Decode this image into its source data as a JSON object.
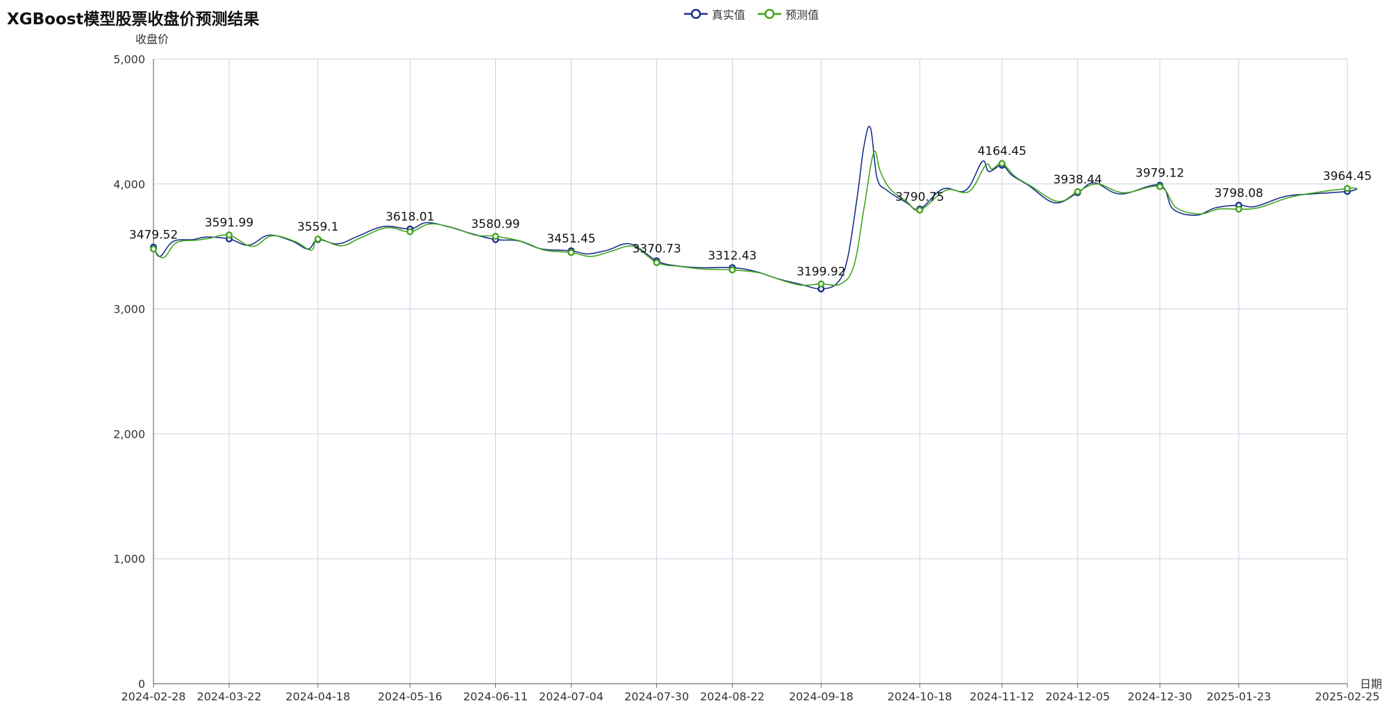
{
  "chart_data": {
    "type": "line",
    "title": "XGBoost模型股票收盘价预测结果",
    "xlabel": "日期",
    "ylabel": "收盘价",
    "ylim": [
      0,
      5000
    ],
    "y_ticks": [
      "0",
      "1,000",
      "2,000",
      "3,000",
      "4,000",
      "5,000"
    ],
    "y_tick_values": [
      0,
      1000,
      2000,
      3000,
      4000,
      5000
    ],
    "x_ticks": [
      "2024-02-28",
      "2024-03-22",
      "2024-04-18",
      "2024-05-16",
      "2024-06-11",
      "2024-07-04",
      "2024-07-30",
      "2024-08-22",
      "2024-09-18",
      "2024-10-18",
      "2024-11-12",
      "2024-12-05",
      "2024-12-30",
      "2025-01-23",
      "2025-02-25"
    ],
    "grid": true,
    "legend_position": "top-center",
    "series": [
      {
        "name": "真实值",
        "color": "#1a2e8c",
        "anchors": [
          [
            "2024-02-28",
            3495
          ],
          [
            "2024-03-01",
            3420
          ],
          [
            "2024-03-05",
            3540
          ],
          [
            "2024-03-11",
            3555
          ],
          [
            "2024-03-15",
            3575
          ],
          [
            "2024-03-22",
            3560
          ],
          [
            "2024-03-28",
            3510
          ],
          [
            "2024-04-03",
            3590
          ],
          [
            "2024-04-10",
            3545
          ],
          [
            "2024-04-15",
            3480
          ],
          [
            "2024-04-18",
            3555
          ],
          [
            "2024-04-24",
            3520
          ],
          [
            "2024-04-30",
            3580
          ],
          [
            "2024-05-08",
            3660
          ],
          [
            "2024-05-16",
            3640
          ],
          [
            "2024-05-21",
            3690
          ],
          [
            "2024-05-28",
            3655
          ],
          [
            "2024-06-04",
            3600
          ],
          [
            "2024-06-11",
            3555
          ],
          [
            "2024-06-18",
            3545
          ],
          [
            "2024-06-25",
            3480
          ],
          [
            "2024-07-04",
            3465
          ],
          [
            "2024-07-09",
            3440
          ],
          [
            "2024-07-15",
            3470
          ],
          [
            "2024-07-22",
            3520
          ],
          [
            "2024-07-30",
            3385
          ],
          [
            "2024-08-05",
            3345
          ],
          [
            "2024-08-12",
            3330
          ],
          [
            "2024-08-22",
            3330
          ],
          [
            "2024-08-29",
            3300
          ],
          [
            "2024-09-05",
            3240
          ],
          [
            "2024-09-12",
            3195
          ],
          [
            "2024-09-18",
            3160
          ],
          [
            "2024-09-23",
            3210
          ],
          [
            "2024-09-26",
            3400
          ],
          [
            "2024-09-29",
            3900
          ],
          [
            "2024-10-01",
            4300
          ],
          [
            "2024-10-03",
            4450
          ],
          [
            "2024-10-05",
            4050
          ],
          [
            "2024-10-08",
            3950
          ],
          [
            "2024-10-14",
            3850
          ],
          [
            "2024-10-18",
            3800
          ],
          [
            "2024-10-25",
            3960
          ],
          [
            "2024-11-01",
            3950
          ],
          [
            "2024-11-06",
            4180
          ],
          [
            "2024-11-08",
            4100
          ],
          [
            "2024-11-12",
            4150
          ],
          [
            "2024-11-15",
            4070
          ],
          [
            "2024-11-20",
            3990
          ],
          [
            "2024-11-28",
            3850
          ],
          [
            "2024-12-05",
            3930
          ],
          [
            "2024-12-10",
            4010
          ],
          [
            "2024-12-18",
            3920
          ],
          [
            "2024-12-30",
            3990
          ],
          [
            "2025-01-03",
            3800
          ],
          [
            "2025-01-10",
            3750
          ],
          [
            "2025-01-16",
            3810
          ],
          [
            "2025-01-23",
            3830
          ],
          [
            "2025-01-28",
            3820
          ],
          [
            "2025-02-06",
            3900
          ],
          [
            "2025-02-14",
            3920
          ],
          [
            "2025-02-25",
            3940
          ],
          [
            "2025-02-28",
            3960
          ]
        ]
      },
      {
        "name": "预测值",
        "color": "#3fa31c",
        "anchors": [
          [
            "2024-02-28",
            3480
          ],
          [
            "2024-03-02",
            3410
          ],
          [
            "2024-03-06",
            3530
          ],
          [
            "2024-03-12",
            3550
          ],
          [
            "2024-03-16",
            3565
          ],
          [
            "2024-03-22",
            3590
          ],
          [
            "2024-03-29",
            3500
          ],
          [
            "2024-04-04",
            3585
          ],
          [
            "2024-04-11",
            3540
          ],
          [
            "2024-04-16",
            3470
          ],
          [
            "2024-04-18",
            3560
          ],
          [
            "2024-04-25",
            3505
          ],
          [
            "2024-05-01",
            3570
          ],
          [
            "2024-05-09",
            3650
          ],
          [
            "2024-05-16",
            3618
          ],
          [
            "2024-05-22",
            3680
          ],
          [
            "2024-05-29",
            3650
          ],
          [
            "2024-06-05",
            3590
          ],
          [
            "2024-06-11",
            3581
          ],
          [
            "2024-06-19",
            3540
          ],
          [
            "2024-06-26",
            3470
          ],
          [
            "2024-07-04",
            3451
          ],
          [
            "2024-07-10",
            3420
          ],
          [
            "2024-07-16",
            3460
          ],
          [
            "2024-07-23",
            3500
          ],
          [
            "2024-07-30",
            3371
          ],
          [
            "2024-08-06",
            3340
          ],
          [
            "2024-08-13",
            3320
          ],
          [
            "2024-08-22",
            3312
          ],
          [
            "2024-08-30",
            3290
          ],
          [
            "2024-09-06",
            3230
          ],
          [
            "2024-09-12",
            3190
          ],
          [
            "2024-09-18",
            3200
          ],
          [
            "2024-09-24",
            3200
          ],
          [
            "2024-09-28",
            3350
          ],
          [
            "2024-10-01",
            3800
          ],
          [
            "2024-10-04",
            4250
          ],
          [
            "2024-10-06",
            4100
          ],
          [
            "2024-10-09",
            3960
          ],
          [
            "2024-10-14",
            3860
          ],
          [
            "2024-10-18",
            3791
          ],
          [
            "2024-10-26",
            3950
          ],
          [
            "2024-11-02",
            3940
          ],
          [
            "2024-11-07",
            4150
          ],
          [
            "2024-11-09",
            4120
          ],
          [
            "2024-11-12",
            4164
          ],
          [
            "2024-11-16",
            4060
          ],
          [
            "2024-11-21",
            3980
          ],
          [
            "2024-11-29",
            3860
          ],
          [
            "2024-12-05",
            3938
          ],
          [
            "2024-12-11",
            4000
          ],
          [
            "2024-12-19",
            3930
          ],
          [
            "2024-12-30",
            3979
          ],
          [
            "2025-01-04",
            3810
          ],
          [
            "2025-01-11",
            3760
          ],
          [
            "2025-01-17",
            3800
          ],
          [
            "2025-01-23",
            3798
          ],
          [
            "2025-01-29",
            3810
          ],
          [
            "2025-02-07",
            3890
          ],
          [
            "2025-02-15",
            3930
          ],
          [
            "2025-02-25",
            3964
          ],
          [
            "2025-02-28",
            3965
          ]
        ]
      }
    ],
    "point_labels": [
      {
        "date": "2024-02-28",
        "value": 3479.52,
        "label": "3479.52"
      },
      {
        "date": "2024-03-22",
        "value": 3591.99,
        "label": "3591.99"
      },
      {
        "date": "2024-04-18",
        "value": 3559.1,
        "label": "3559.1"
      },
      {
        "date": "2024-05-16",
        "value": 3618.01,
        "label": "3618.01"
      },
      {
        "date": "2024-06-11",
        "value": 3580.99,
        "label": "3580.99"
      },
      {
        "date": "2024-07-04",
        "value": 3451.45,
        "label": "3451.45"
      },
      {
        "date": "2024-07-30",
        "value": 3370.73,
        "label": "3370.73"
      },
      {
        "date": "2024-08-22",
        "value": 3312.43,
        "label": "3312.43"
      },
      {
        "date": "2024-09-18",
        "value": 3199.92,
        "label": "3199.92"
      },
      {
        "date": "2024-10-18",
        "value": 3790.75,
        "label": "3790.75"
      },
      {
        "date": "2024-11-12",
        "value": 4164.45,
        "label": "4164.45"
      },
      {
        "date": "2024-12-05",
        "value": 3938.44,
        "label": "3938.44"
      },
      {
        "date": "2024-12-30",
        "value": 3979.12,
        "label": "3979.12"
      },
      {
        "date": "2025-01-23",
        "value": 3798.08,
        "label": "3798.08"
      },
      {
        "date": "2025-02-25",
        "value": 3964.45,
        "label": "3964.45"
      }
    ]
  }
}
